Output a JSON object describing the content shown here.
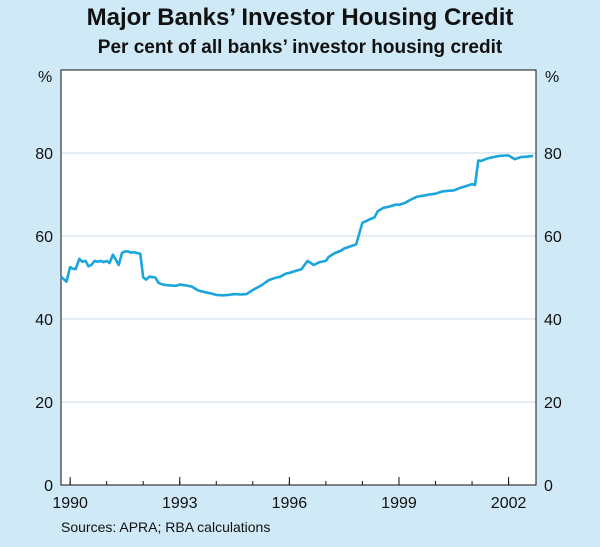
{
  "title": "Major Banks’ Investor Housing Credit",
  "subtitle": "Per cent of all banks’ investor housing credit",
  "source": "Sources: APRA; RBA calculations",
  "colors": {
    "background": "#cfe9f6",
    "plot_area": "#ffffff",
    "series": "#1aa5dd",
    "gridline": "#c8d7e3"
  },
  "chart_data": {
    "type": "line",
    "ylabel_left": "%",
    "ylabel_right": "%",
    "ylim": [
      0,
      100
    ],
    "xlim": [
      1989.75,
      2002.75
    ],
    "yticks": [
      0,
      20,
      40,
      60,
      80
    ],
    "xticks": [
      "1990",
      "1993",
      "1996",
      "1999",
      "2002"
    ],
    "grid": true,
    "series": [
      {
        "x": [
          1989.75,
          1989.9,
          1990.0,
          1990.05,
          1990.15,
          1990.25,
          1990.33,
          1990.42,
          1990.5,
          1990.58,
          1990.67,
          1990.75,
          1990.83,
          1990.92,
          1991.0,
          1991.08,
          1991.17,
          1991.25,
          1991.33,
          1991.42,
          1991.5,
          1991.58,
          1991.67,
          1991.75,
          1991.83,
          1991.92,
          1992.0,
          1992.08,
          1992.17,
          1992.25,
          1992.33,
          1992.42,
          1992.5,
          1992.6,
          1992.75,
          1992.9,
          1993.0,
          1993.17,
          1993.33,
          1993.5,
          1993.67,
          1993.83,
          1994.0,
          1994.17,
          1994.33,
          1994.5,
          1994.67,
          1994.83,
          1995.0,
          1995.17,
          1995.25,
          1995.42,
          1995.58,
          1995.75,
          1995.92,
          1996.0,
          1996.17,
          1996.33,
          1996.5,
          1996.67,
          1996.83,
          1997.0,
          1997.08,
          1997.25,
          1997.42,
          1997.5,
          1997.67,
          1997.83,
          1998.0,
          1998.08,
          1998.17,
          1998.33,
          1998.42,
          1998.58,
          1998.75,
          1998.92,
          1999.0,
          1999.17,
          1999.33,
          1999.5,
          1999.67,
          1999.83,
          2000.0,
          2000.17,
          2000.33,
          2000.5,
          2000.67,
          2000.83,
          2001.0,
          2001.08,
          2001.17,
          2001.25,
          2001.42,
          2001.58,
          2001.75,
          2001.92,
          2002.0,
          2002.17,
          2002.33,
          2002.5,
          2002.67
        ],
        "y": [
          50.2,
          49.0,
          52.5,
          52.2,
          52.0,
          54.5,
          53.8,
          54.0,
          52.7,
          53.0,
          54.0,
          53.8,
          54.0,
          53.7,
          54.0,
          53.5,
          55.5,
          54.3,
          53.0,
          55.9,
          56.3,
          56.3,
          56.0,
          56.1,
          55.9,
          55.7,
          50.0,
          49.5,
          50.2,
          50.1,
          50.0,
          48.7,
          48.4,
          48.2,
          48.1,
          48.0,
          48.3,
          48.1,
          47.8,
          46.9,
          46.5,
          46.2,
          45.8,
          45.7,
          45.8,
          46.0,
          45.9,
          46.0,
          47.0,
          47.8,
          48.2,
          49.3,
          49.8,
          50.2,
          51.0,
          51.1,
          51.6,
          52.0,
          54.0,
          53.0,
          53.7,
          54.0,
          55.0,
          55.9,
          56.5,
          57.0,
          57.5,
          58.0,
          63.2,
          63.5,
          63.9,
          64.5,
          66.0,
          66.8,
          67.1,
          67.6,
          67.5,
          68.0,
          68.8,
          69.5,
          69.7,
          70.0,
          70.2,
          70.7,
          70.9,
          71.0,
          71.6,
          72.0,
          72.5,
          72.3,
          78.2,
          78.1,
          78.7,
          79.0,
          79.3,
          79.4,
          79.4,
          78.5,
          79.0,
          79.1,
          79.3
        ]
      }
    ]
  }
}
